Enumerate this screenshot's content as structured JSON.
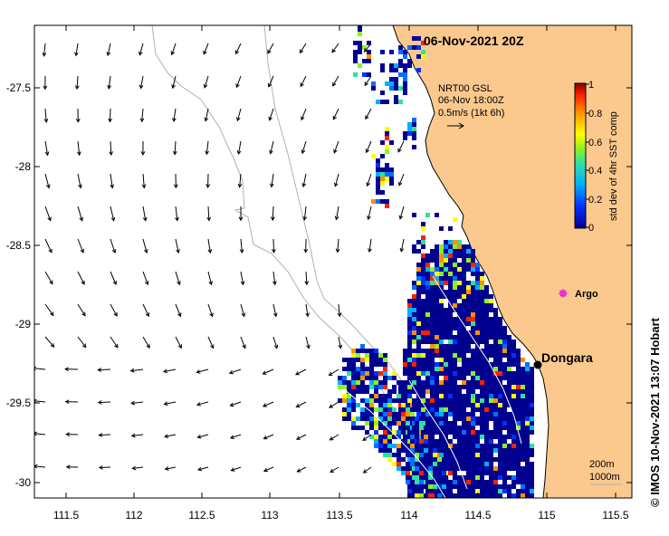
{
  "title": "06-Nov-2021 20Z",
  "legend": {
    "line1": "NRT00 GSL",
    "line2": "06-Nov 18:00Z",
    "line3": "0.5m/s (1kt 6h)"
  },
  "colorbar": {
    "label": "std dev of 4hr SST comp",
    "ticks": [
      "1",
      "0.8",
      "0.6",
      "0.4",
      "0.2",
      "0"
    ]
  },
  "places": {
    "dongara": "Dongara",
    "argo": "Argo"
  },
  "credit": "©  IMOS 10-Nov-2021 13:07 Hobart",
  "scale": {
    "depth1": "200m",
    "depth2": "1000m"
  },
  "axes": {
    "x_ticks": [
      "111.5",
      "112",
      "112.5",
      "113",
      "113.5",
      "114",
      "114.5",
      "115",
      "115.5"
    ],
    "y_ticks": [
      "-27.5",
      "-28",
      "-28.5",
      "-29",
      "-29.5",
      "-30"
    ]
  },
  "colors": {
    "land": "#fbc98e",
    "coast": "#000000",
    "bathy": "#b0b0b0",
    "argo": "#dd22dd"
  }
}
